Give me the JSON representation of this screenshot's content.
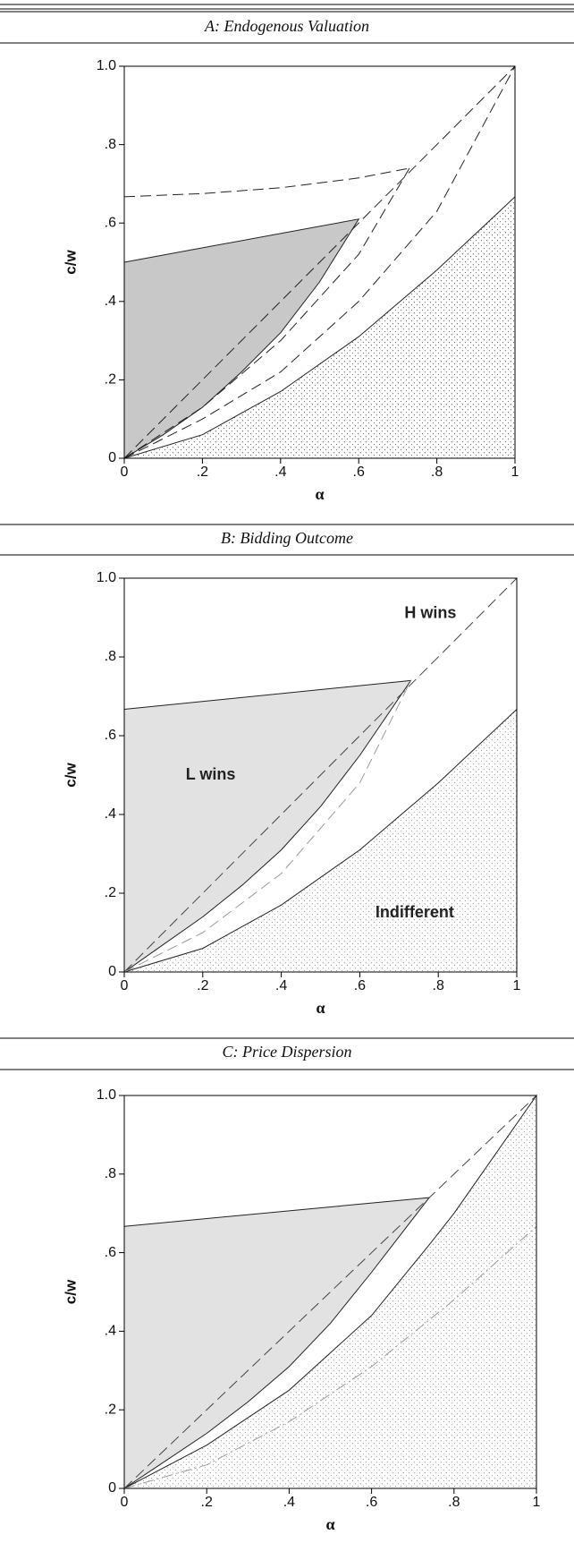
{
  "chart_data": [
    {
      "type": "region",
      "title": "A: Endogenous Valuation",
      "xlabel": "α",
      "ylabel": "c/w",
      "xlim": [
        0,
        1
      ],
      "ylim": [
        0,
        1
      ],
      "xticks": [
        0,
        {
          "value": 0.2,
          "label": ".2"
        },
        {
          "value": 0.4,
          "label": ".4"
        },
        {
          "value": 0.6,
          "label": ".6"
        },
        {
          "value": 0.8,
          "label": ".8"
        },
        1
      ],
      "yticks": [
        0,
        {
          "value": 0.2,
          "label": ".2"
        },
        {
          "value": 0.4,
          "label": ".4"
        },
        {
          "value": 0.6,
          "label": ".6"
        },
        {
          "value": 0.8,
          "label": ".8"
        },
        {
          "value": 1,
          "label": "1.0"
        }
      ],
      "series": [
        {
          "x": [
            0,
            0.6,
            0.5,
            0.4,
            0.3,
            0.2,
            0.1,
            0
          ],
          "values": [
            0.5,
            0.61,
            0.45,
            0.32,
            0.22,
            0.13,
            0.06,
            0
          ],
          "fill": "#c8c8c8",
          "color": "#222"
        },
        {
          "x": [
            0,
            0.2,
            0.4,
            0.6,
            0.8,
            1,
            1
          ],
          "values": [
            0,
            0.06,
            0.17,
            0.31,
            0.48,
            0.667,
            0
          ],
          "pattern": "dots",
          "dots": "#222",
          "color": "#222"
        },
        {
          "x": [
            0,
            0.2,
            0.4,
            0.6,
            0.73
          ],
          "values": [
            0.667,
            0.675,
            0.69,
            0.715,
            0.74
          ],
          "dash": "long",
          "color": "#222"
        },
        {
          "x": [
            0,
            1
          ],
          "values": [
            0,
            1
          ],
          "dash": "long",
          "color": "#222"
        },
        {
          "x": [
            0,
            0.2,
            0.4,
            0.6,
            0.73
          ],
          "values": [
            0,
            0.13,
            0.3,
            0.52,
            0.74
          ],
          "dash": "long",
          "color": "#222"
        },
        {
          "x": [
            0,
            0.2,
            0.4,
            0.6,
            0.8,
            1
          ],
          "values": [
            0,
            0.1,
            0.22,
            0.4,
            0.63,
            1
          ],
          "dash": "long",
          "color": "#222"
        }
      ]
    },
    {
      "type": "region",
      "title": "B: Bidding Outcome",
      "xlabel": "α",
      "ylabel": "c/w",
      "xlim": [
        0,
        1
      ],
      "ylim": [
        0,
        1
      ],
      "xticks": [
        0,
        {
          "value": 0.2,
          "label": ".2"
        },
        {
          "value": 0.4,
          "label": ".4"
        },
        {
          "value": 0.6,
          "label": ".6"
        },
        {
          "value": 0.8,
          "label": ".8"
        },
        1
      ],
      "yticks": [
        0,
        {
          "value": 0.2,
          "label": ".2"
        },
        {
          "value": 0.4,
          "label": ".4"
        },
        {
          "value": 0.6,
          "label": ".6"
        },
        {
          "value": 0.8,
          "label": ".8"
        },
        {
          "value": 1,
          "label": "1.0"
        }
      ],
      "annotations": [
        "H wins",
        "L wins",
        "Indifferent"
      ],
      "series": [
        {
          "x": [
            0,
            0.73,
            0.6,
            0.5,
            0.4,
            0.3,
            0.2,
            0.1,
            0
          ],
          "values": [
            0.667,
            0.74,
            0.55,
            0.42,
            0.31,
            0.22,
            0.14,
            0.07,
            0
          ],
          "fill": "#e2e2e2",
          "color": "#222"
        },
        {
          "x": [
            0,
            0.2,
            0.4,
            0.6,
            0.8,
            1,
            1
          ],
          "values": [
            0,
            0.06,
            0.17,
            0.31,
            0.48,
            0.667,
            0
          ],
          "pattern": "dots",
          "dots": "#777",
          "color": "#222"
        },
        {
          "x": [
            0,
            1
          ],
          "values": [
            0,
            1
          ],
          "dash": "long",
          "color": "#444"
        },
        {
          "x": [
            0,
            0.2,
            0.4,
            0.6,
            0.73
          ],
          "values": [
            0,
            0.1,
            0.25,
            0.48,
            0.74
          ],
          "dash": "long",
          "color": "#999"
        }
      ]
    },
    {
      "type": "region",
      "title": "C: Price Dispersion",
      "xlabel": "α",
      "ylabel": "c/w",
      "xlim": [
        0,
        1
      ],
      "ylim": [
        0,
        1
      ],
      "xticks": [
        0,
        {
          "value": 0.2,
          "label": ".2"
        },
        {
          "value": 0.4,
          "label": ".4"
        },
        {
          "value": 0.6,
          "label": ".6"
        },
        {
          "value": 0.8,
          "label": ".8"
        },
        1
      ],
      "yticks": [
        0,
        {
          "value": 0.2,
          "label": ".2"
        },
        {
          "value": 0.4,
          "label": ".4"
        },
        {
          "value": 0.6,
          "label": ".6"
        },
        {
          "value": 0.8,
          "label": ".8"
        },
        {
          "value": 1,
          "label": "1.0"
        }
      ],
      "series": [
        {
          "x": [
            0,
            0.74,
            0.6,
            0.5,
            0.4,
            0.3,
            0.2,
            0.1,
            0
          ],
          "values": [
            0.667,
            0.74,
            0.55,
            0.42,
            0.31,
            0.22,
            0.14,
            0.07,
            0
          ],
          "fill": "#e2e2e2",
          "color": "#222"
        },
        {
          "x": [
            0,
            0.2,
            0.4,
            0.6,
            0.74,
            0.8,
            1,
            1
          ],
          "values": [
            0,
            0.11,
            0.25,
            0.44,
            0.62,
            0.7,
            1,
            0
          ],
          "pattern": "dots",
          "dots": "#777",
          "color": "#222"
        },
        {
          "x": [
            0,
            1
          ],
          "values": [
            0,
            1
          ],
          "dash": "long",
          "color": "#444"
        },
        {
          "x": [
            0,
            0.2,
            0.4,
            0.6,
            0.8,
            1
          ],
          "values": [
            0,
            0.06,
            0.17,
            0.31,
            0.48,
            0.667
          ],
          "dash": "dashdot",
          "color": "#999"
        }
      ]
    }
  ]
}
